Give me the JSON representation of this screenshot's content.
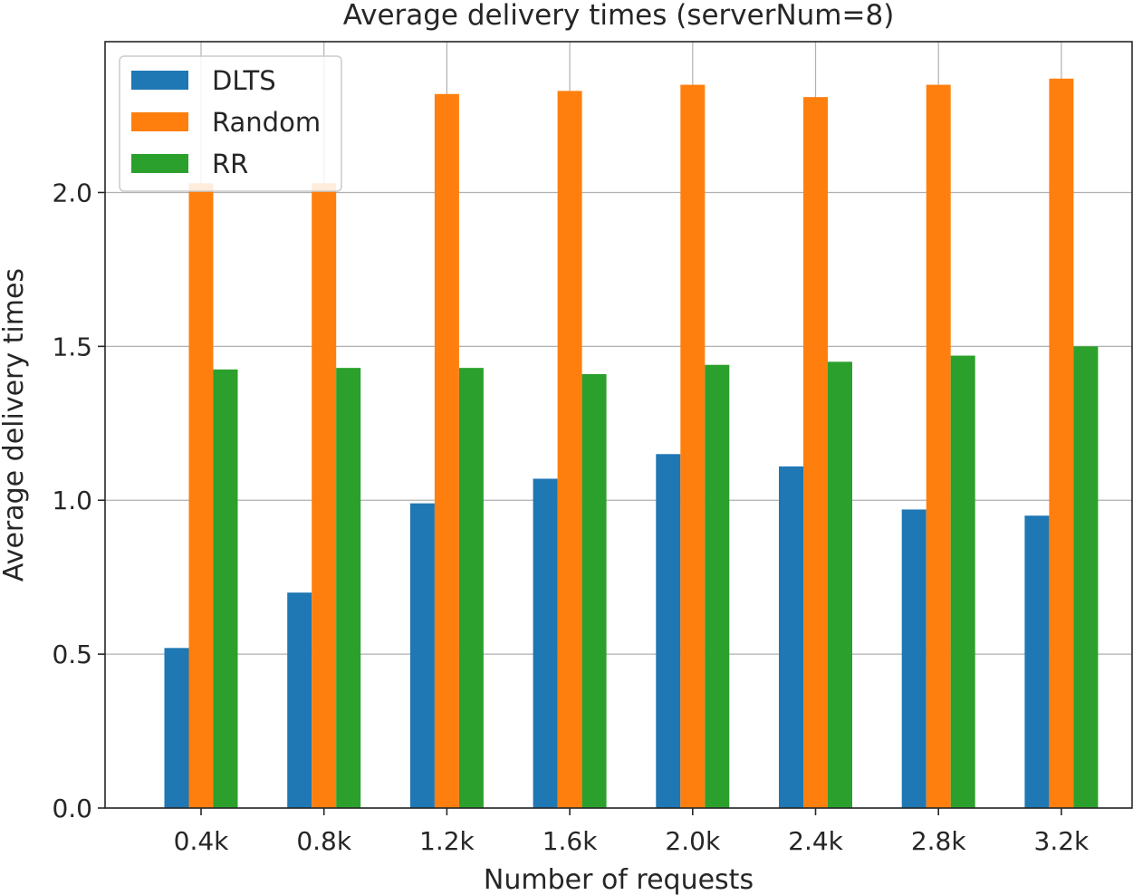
{
  "chart_data": {
    "type": "bar",
    "title": "Average delivery times (serverNum=8)",
    "xlabel": "Number of requests",
    "ylabel": "Average delivery times",
    "categories": [
      "0.4k",
      "0.8k",
      "1.2k",
      "1.6k",
      "2.0k",
      "2.4k",
      "2.8k",
      "3.2k"
    ],
    "series": [
      {
        "name": "DLTS",
        "color": "#1f77b4",
        "values": [
          0.52,
          0.7,
          0.99,
          1.07,
          1.15,
          1.11,
          0.97,
          0.95
        ]
      },
      {
        "name": "Random",
        "color": "#ff7f0e",
        "values": [
          2.03,
          2.03,
          2.32,
          2.33,
          2.35,
          2.31,
          2.35,
          2.37
        ]
      },
      {
        "name": "RR",
        "color": "#2ca02c",
        "values": [
          1.425,
          1.43,
          1.43,
          1.41,
          1.44,
          1.45,
          1.47,
          1.5
        ]
      }
    ],
    "ylim": [
      0,
      2.49
    ],
    "yticks": [
      0.0,
      0.5,
      1.0,
      1.5,
      2.0
    ],
    "ytick_labels": [
      "0.0",
      "0.5",
      "1.0",
      "1.5",
      "2.0"
    ],
    "grid": true,
    "legend_position": "top-left"
  }
}
